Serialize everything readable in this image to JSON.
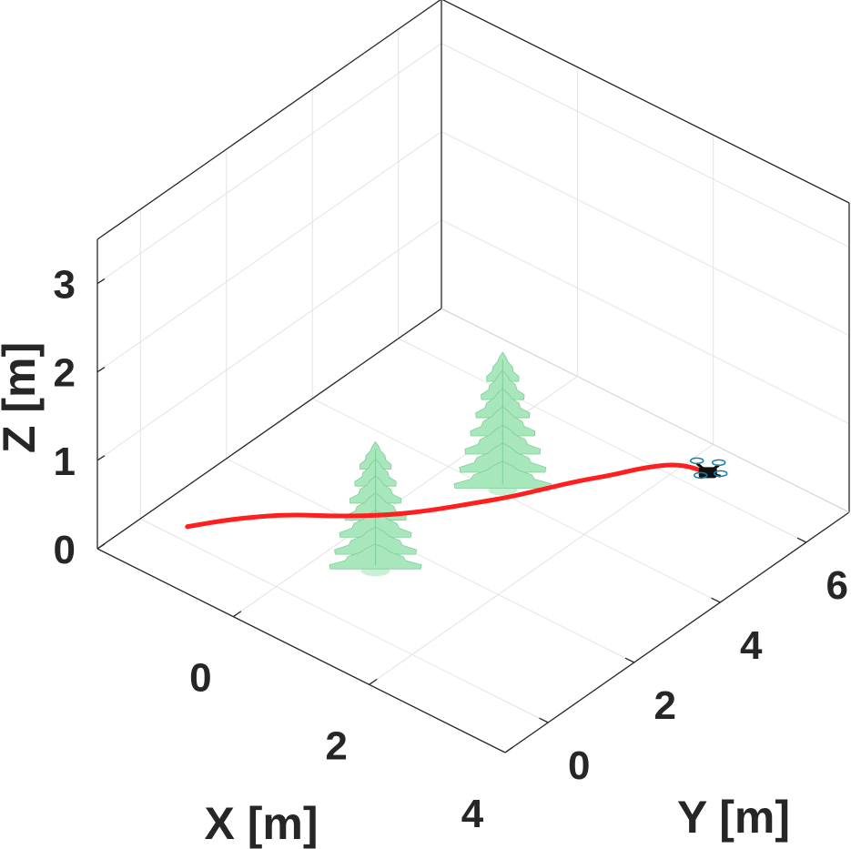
{
  "chart_data": {
    "type": "line",
    "view": "3d",
    "xlabel": "X [m]",
    "ylabel": "Y [m]",
    "zlabel": "Z [m]",
    "xlim": [
      -2,
      4
    ],
    "ylim": [
      -1,
      7
    ],
    "zlim": [
      0,
      3.5
    ],
    "xticks": [
      0,
      2,
      4
    ],
    "yticks": [
      0,
      2,
      4,
      6
    ],
    "zticks": [
      0,
      1,
      2,
      3
    ],
    "grid": true,
    "series": [
      {
        "color": "#ff1f1f",
        "x": [
          -1.5,
          -1.2,
          -0.8,
          -0.3,
          0.1,
          0.4,
          0.7,
          0.9,
          1.1,
          1.3,
          1.5,
          1.7,
          1.95,
          2.3
        ],
        "y": [
          0.3,
          0.9,
          1.5,
          2.0,
          2.5,
          3.0,
          3.6,
          4.0,
          4.5,
          5.0,
          5.4,
          5.9,
          6.3,
          6.4
        ],
        "z": [
          0,
          0,
          0,
          0,
          0,
          0,
          0,
          0,
          0,
          0,
          0,
          0,
          0,
          0
        ]
      }
    ],
    "objects": [
      {
        "kind": "tree",
        "color": "#a8e6bc",
        "x": 0.7,
        "y": 1.2,
        "height": 1.5
      },
      {
        "kind": "tree",
        "color": "#a8e6bc",
        "x": 0.8,
        "y": 4.0,
        "height": 1.6
      },
      {
        "kind": "quadrotor",
        "color": "#111111",
        "x": 2.3,
        "y": 6.4,
        "z": 0
      }
    ]
  }
}
